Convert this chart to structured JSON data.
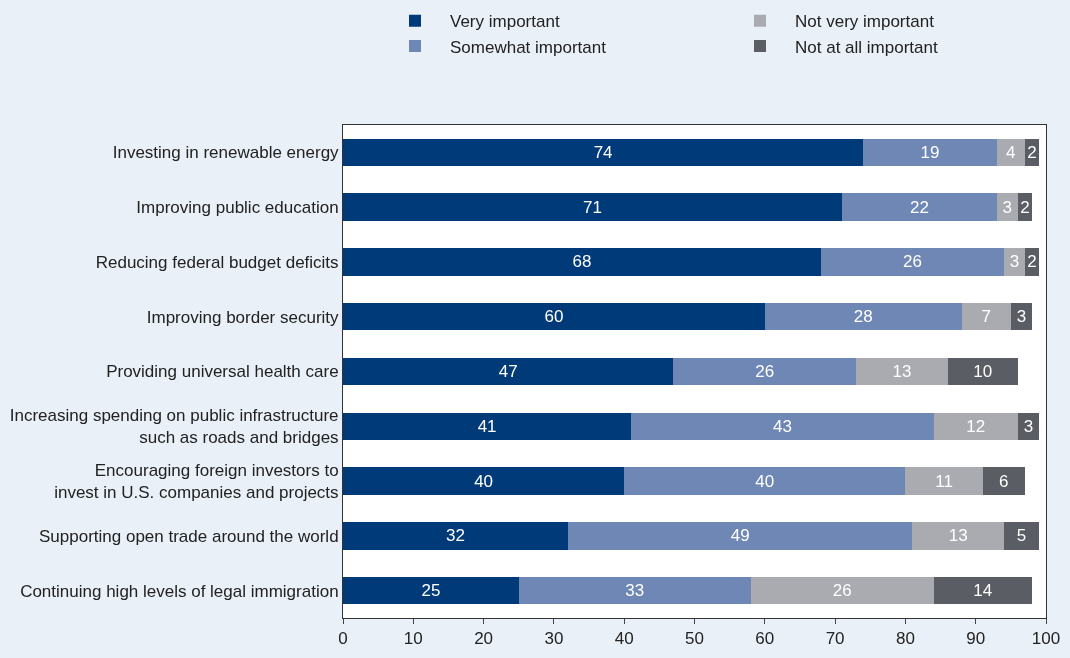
{
  "chart_data": {
    "type": "bar",
    "orientation": "horizontal",
    "stacked": true,
    "data_labels": true,
    "legend": "top",
    "categories": [
      "Investing in renewable energy",
      "Improving public education",
      "Reducing federal budget deficits",
      "Improving border security",
      "Providing universal health care",
      "Increasing spending on public infrastructure\nsuch as roads and bridges",
      "Encouraging foreign investors to\ninvest in U.S. companies and projects",
      "Supporting open trade around the world",
      "Continuing high levels of legal immigration"
    ],
    "series": [
      {
        "name": "Very important",
        "color": "#003a78",
        "values": [
          74,
          71,
          68,
          60,
          47,
          41,
          40,
          32,
          25
        ]
      },
      {
        "name": "Somewhat important",
        "color": "#6f87b5",
        "values": [
          19,
          22,
          26,
          28,
          26,
          43,
          40,
          49,
          33
        ]
      },
      {
        "name": "Not very important",
        "color": "#a9abb0",
        "values": [
          4,
          3,
          3,
          7,
          13,
          12,
          11,
          13,
          26
        ]
      },
      {
        "name": "Not at all important",
        "color": "#5a5d63",
        "values": [
          2,
          2,
          2,
          3,
          10,
          3,
          6,
          5,
          14
        ]
      }
    ],
    "xlim": [
      0,
      100
    ],
    "xticks": [
      0,
      10,
      20,
      30,
      40,
      50,
      60,
      70,
      80,
      90,
      100
    ]
  }
}
